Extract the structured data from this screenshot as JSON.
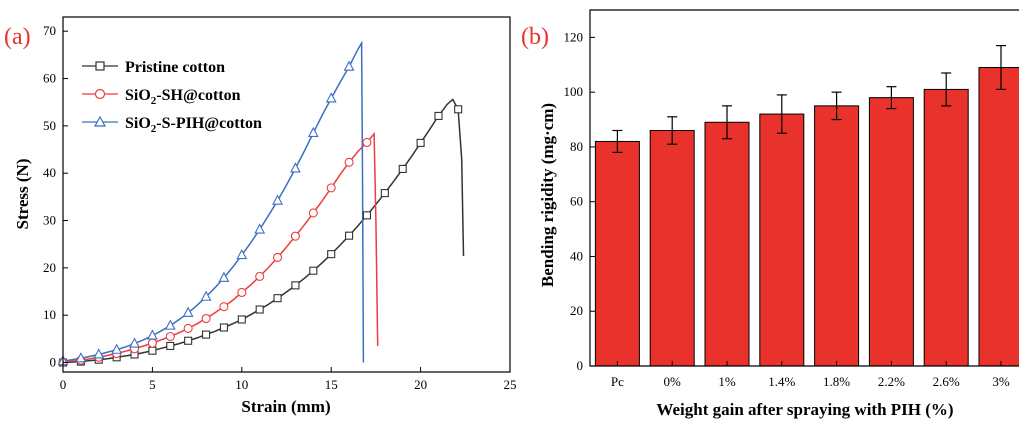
{
  "colors": {
    "pristine": "#333333",
    "sh": "#ee3b3b",
    "pih": "#3a6fc4",
    "bar": "#e8322b",
    "panel_label": "#e8322b"
  },
  "chart_data": [
    {
      "panel_label": "(a)",
      "type": "line",
      "xlabel": "Strain (mm)",
      "ylabel": "Stress (N)",
      "xlim": [
        0,
        25
      ],
      "ylim": [
        -2,
        73
      ],
      "xticks": [
        0,
        5,
        10,
        15,
        20,
        25
      ],
      "yticks": [
        0,
        10,
        20,
        30,
        40,
        50,
        60,
        70
      ],
      "legend_position": "top-left",
      "series": [
        {
          "name": "Pristine cotton",
          "marker": "square",
          "color": "#333333",
          "points": [
            [
              0,
              0
            ],
            [
              0.5,
              0.1
            ],
            [
              1,
              0.2
            ],
            [
              1.5,
              0.4
            ],
            [
              2,
              0.6
            ],
            [
              2.5,
              0.8
            ],
            [
              3,
              1.1
            ],
            [
              3.5,
              1.4
            ],
            [
              4,
              1.7
            ],
            [
              4.5,
              2.1
            ],
            [
              5,
              2.5
            ],
            [
              5.5,
              3.0
            ],
            [
              6,
              3.5
            ],
            [
              6.5,
              4.0
            ],
            [
              7,
              4.6
            ],
            [
              7.5,
              5.2
            ],
            [
              8,
              5.9
            ],
            [
              8.5,
              6.6
            ],
            [
              9,
              7.4
            ],
            [
              9.5,
              8.2
            ],
            [
              10,
              9.1
            ],
            [
              10.5,
              10.1
            ],
            [
              11,
              11.2
            ],
            [
              11.5,
              12.3
            ],
            [
              12,
              13.6
            ],
            [
              12.5,
              14.9
            ],
            [
              13,
              16.3
            ],
            [
              13.5,
              17.8
            ],
            [
              14,
              19.4
            ],
            [
              14.5,
              21.1
            ],
            [
              15,
              22.9
            ],
            [
              15.5,
              24.8
            ],
            [
              16,
              26.8
            ],
            [
              16.5,
              28.9
            ],
            [
              17,
              31.1
            ],
            [
              17.5,
              33.4
            ],
            [
              18,
              35.8
            ],
            [
              18.5,
              38.3
            ],
            [
              19,
              40.9
            ],
            [
              19.5,
              43.6
            ],
            [
              20,
              46.4
            ],
            [
              20.5,
              49.2
            ],
            [
              21,
              52.1
            ],
            [
              21.5,
              54.6
            ],
            [
              21.8,
              55.6
            ],
            [
              22.1,
              53.5
            ],
            [
              22.3,
              43
            ],
            [
              22.4,
              22.5
            ]
          ],
          "marker_points": [
            [
              0,
              0
            ],
            [
              1,
              0.2
            ],
            [
              2,
              0.6
            ],
            [
              3,
              1.1
            ],
            [
              4,
              1.7
            ],
            [
              5,
              2.5
            ],
            [
              6,
              3.5
            ],
            [
              7,
              4.6
            ],
            [
              8,
              5.9
            ],
            [
              9,
              7.4
            ],
            [
              10,
              9.1
            ],
            [
              11,
              11.2
            ],
            [
              12,
              13.6
            ],
            [
              13,
              16.3
            ],
            [
              14,
              19.4
            ],
            [
              15,
              22.9
            ],
            [
              16,
              26.8
            ],
            [
              17,
              31.1
            ],
            [
              18,
              35.8
            ],
            [
              19,
              40.9
            ],
            [
              20,
              46.4
            ],
            [
              21,
              52.1
            ],
            [
              22.1,
              53.5
            ]
          ]
        },
        {
          "name": "SiO2-SH@cotton",
          "marker": "circle",
          "color": "#ee3b3b",
          "points": [
            [
              0,
              0.1
            ],
            [
              0.5,
              0.3
            ],
            [
              1,
              0.5
            ],
            [
              1.5,
              0.8
            ],
            [
              2,
              1.1
            ],
            [
              2.5,
              1.5
            ],
            [
              3,
              1.9
            ],
            [
              3.5,
              2.4
            ],
            [
              4,
              2.9
            ],
            [
              4.5,
              3.5
            ],
            [
              5,
              4.1
            ],
            [
              5.5,
              4.8
            ],
            [
              6,
              5.5
            ],
            [
              6.5,
              6.3
            ],
            [
              7,
              7.2
            ],
            [
              7.5,
              8.2
            ],
            [
              8,
              9.3
            ],
            [
              8.5,
              10.5
            ],
            [
              9,
              11.8
            ],
            [
              9.5,
              13.2
            ],
            [
              10,
              14.8
            ],
            [
              10.5,
              16.4
            ],
            [
              11,
              18.2
            ],
            [
              11.5,
              20.1
            ],
            [
              12,
              22.2
            ],
            [
              12.5,
              24.4
            ],
            [
              13,
              26.7
            ],
            [
              13.5,
              29.1
            ],
            [
              14,
              31.6
            ],
            [
              14.5,
              34.2
            ],
            [
              15,
              36.9
            ],
            [
              15.5,
              39.7
            ],
            [
              16,
              42.3
            ],
            [
              16.5,
              44.6
            ],
            [
              17,
              46.5
            ],
            [
              17.4,
              48.3
            ],
            [
              17.5,
              30
            ],
            [
              17.6,
              3.5
            ]
          ],
          "marker_points": [
            [
              0,
              0.1
            ],
            [
              1,
              0.5
            ],
            [
              2,
              1.1
            ],
            [
              3,
              1.9
            ],
            [
              4,
              2.9
            ],
            [
              5,
              4.1
            ],
            [
              6,
              5.5
            ],
            [
              7,
              7.2
            ],
            [
              8,
              9.3
            ],
            [
              9,
              11.8
            ],
            [
              10,
              14.8
            ],
            [
              11,
              18.2
            ],
            [
              12,
              22.2
            ],
            [
              13,
              26.7
            ],
            [
              14,
              31.6
            ],
            [
              15,
              36.9
            ],
            [
              16,
              42.3
            ],
            [
              17,
              46.5
            ]
          ]
        },
        {
          "name": "SiO2-S-PIH@cotton",
          "marker": "triangle",
          "color": "#3a6fc4",
          "points": [
            [
              0,
              0.3
            ],
            [
              0.5,
              0.6
            ],
            [
              1,
              0.9
            ],
            [
              1.5,
              1.3
            ],
            [
              2,
              1.7
            ],
            [
              2.5,
              2.2
            ],
            [
              3,
              2.7
            ],
            [
              3.5,
              3.3
            ],
            [
              4,
              4.0
            ],
            [
              4.5,
              4.8
            ],
            [
              5,
              5.7
            ],
            [
              5.5,
              6.7
            ],
            [
              6,
              7.8
            ],
            [
              6.5,
              9.1
            ],
            [
              7,
              10.5
            ],
            [
              7.5,
              12.1
            ],
            [
              8,
              13.9
            ],
            [
              8.5,
              15.8
            ],
            [
              9,
              17.9
            ],
            [
              9.5,
              20.2
            ],
            [
              10,
              22.7
            ],
            [
              10.5,
              25.3
            ],
            [
              11,
              28.1
            ],
            [
              11.5,
              31.1
            ],
            [
              12,
              34.2
            ],
            [
              12.5,
              37.5
            ],
            [
              13,
              41.0
            ],
            [
              13.5,
              44.7
            ],
            [
              14,
              48.5
            ],
            [
              14.5,
              52.3
            ],
            [
              15,
              55.8
            ],
            [
              15.5,
              59.2
            ],
            [
              16,
              62.5
            ],
            [
              16.5,
              66.2
            ],
            [
              16.7,
              67.5
            ],
            [
              16.75,
              40
            ],
            [
              16.8,
              0
            ]
          ],
          "marker_points": [
            [
              0,
              0.3
            ],
            [
              1,
              0.9
            ],
            [
              2,
              1.7
            ],
            [
              3,
              2.7
            ],
            [
              4,
              4.0
            ],
            [
              5,
              5.7
            ],
            [
              6,
              7.8
            ],
            [
              7,
              10.5
            ],
            [
              8,
              13.9
            ],
            [
              9,
              17.9
            ],
            [
              10,
              22.7
            ],
            [
              11,
              28.1
            ],
            [
              12,
              34.2
            ],
            [
              13,
              41.0
            ],
            [
              14,
              48.5
            ],
            [
              15,
              55.8
            ],
            [
              16,
              62.5
            ]
          ]
        }
      ]
    },
    {
      "panel_label": "(b)",
      "type": "bar",
      "xlabel": "Weight gain after spraying with PIH (%)",
      "ylabel": "Bending rigidity (mg·cm)",
      "ylim": [
        0,
        130
      ],
      "yticks": [
        0,
        20,
        40,
        60,
        80,
        100,
        120
      ],
      "categories": [
        "Pc",
        "0%",
        "1%",
        "1.4%",
        "1.8%",
        "2.2%",
        "2.6%",
        "3%"
      ],
      "values": [
        82,
        86,
        89,
        92,
        95,
        98,
        101,
        109
      ],
      "errors": [
        4,
        5,
        6,
        7,
        5,
        4,
        6,
        8
      ],
      "color": "#e8322b"
    }
  ]
}
